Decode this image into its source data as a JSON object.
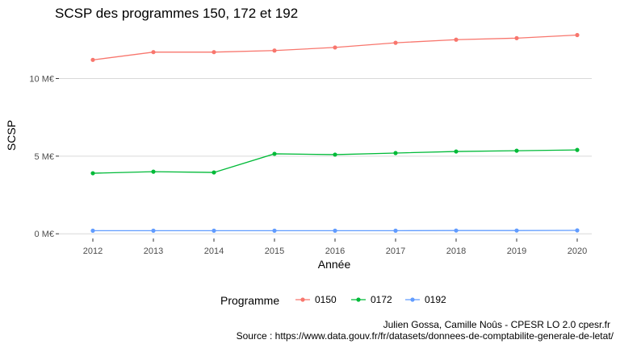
{
  "chart_data": {
    "type": "line",
    "title": "SCSP des programmes 150, 172 et 192",
    "xlabel": "Année",
    "ylabel": "SCSP",
    "x": [
      "2012",
      "2013",
      "2014",
      "2015",
      "2016",
      "2017",
      "2018",
      "2019",
      "2020"
    ],
    "y_ticks": [
      {
        "value": 0,
        "label": "0 M€"
      },
      {
        "value": 5,
        "label": "5 M€"
      },
      {
        "value": 10,
        "label": "10 M€"
      }
    ],
    "ylim": [
      -0.3,
      13.5
    ],
    "units": "M€",
    "grid": true,
    "legend_title": "Programme",
    "legend_position": "bottom",
    "series": [
      {
        "name": "0150",
        "color": "#F8766D",
        "values": [
          11.2,
          11.7,
          11.7,
          11.8,
          12.0,
          12.3,
          12.5,
          12.6,
          12.8
        ]
      },
      {
        "name": "0172",
        "color": "#00BA38",
        "values": [
          3.9,
          4.0,
          3.95,
          5.15,
          5.1,
          5.2,
          5.3,
          5.35,
          5.4
        ]
      },
      {
        "name": "0192",
        "color": "#619CFF",
        "values": [
          0.2,
          0.2,
          0.2,
          0.2,
          0.2,
          0.2,
          0.21,
          0.21,
          0.22
        ]
      }
    ],
    "caption_line1": "Julien Gossa, Camille Noûs - CPESR LO 2.0 cpesr.fr",
    "caption_line2": "Source : https://www.data.gouv.fr/fr/datasets/donnees-de-comptabilite-generale-de-letat/"
  }
}
